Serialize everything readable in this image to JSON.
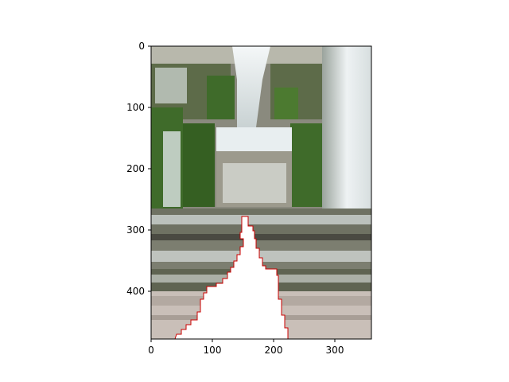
{
  "figure": {
    "image_description_name": "waterfall-fountain-photo",
    "mask_color": "#ffffff",
    "mask_outline_color": "#cc0000"
  },
  "axes": {
    "x_ticks": [
      "0",
      "100",
      "200",
      "300"
    ],
    "y_ticks": [
      "0",
      "100",
      "200",
      "300",
      "400"
    ],
    "x_range": [
      0,
      360
    ],
    "y_range": [
      0,
      480
    ]
  },
  "colors": {
    "stone": "#8a8a7e",
    "moss": "#3f6b2a",
    "water": "#e8eef0",
    "pavement": "#c9bfb8",
    "shadow": "#4a4a42"
  }
}
